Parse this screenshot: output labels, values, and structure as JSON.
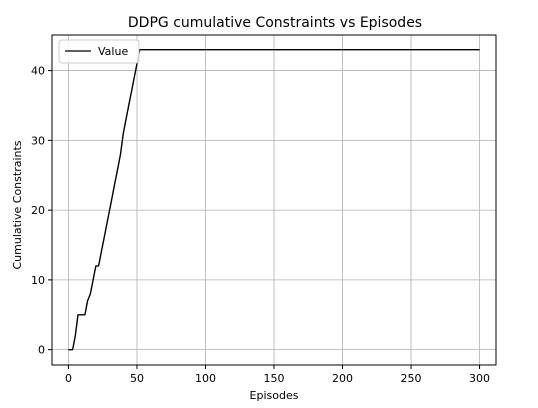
{
  "chart_data": {
    "type": "line",
    "title": "DDPG cumulative Constraints vs Episodes",
    "xlabel": "Episodes",
    "ylabel": "Cumulative Constraints",
    "xlim": [
      -12,
      312
    ],
    "ylim": [
      -2.2,
      45.1
    ],
    "xticks": [
      0,
      50,
      100,
      150,
      200,
      250,
      300
    ],
    "yticks": [
      0,
      10,
      20,
      30,
      40
    ],
    "grid": true,
    "legend": {
      "position": "top-left",
      "entries": [
        "Value"
      ]
    },
    "series": [
      {
        "name": "Value",
        "color": "#000000",
        "x": [
          0,
          3,
          5,
          7,
          10,
          12,
          14,
          16,
          18,
          20,
          22,
          24,
          26,
          28,
          30,
          32,
          34,
          36,
          38,
          40,
          42,
          44,
          46,
          48,
          50,
          52,
          53,
          54,
          60,
          100,
          150,
          200,
          250,
          300
        ],
        "y": [
          0,
          0,
          2,
          5,
          5,
          5,
          7,
          8,
          10,
          12,
          12,
          14,
          16,
          18,
          20,
          22,
          24,
          26,
          28,
          31,
          33,
          35,
          37,
          39,
          41,
          43,
          43,
          43,
          43,
          43,
          43,
          43,
          43,
          43
        ]
      }
    ]
  }
}
